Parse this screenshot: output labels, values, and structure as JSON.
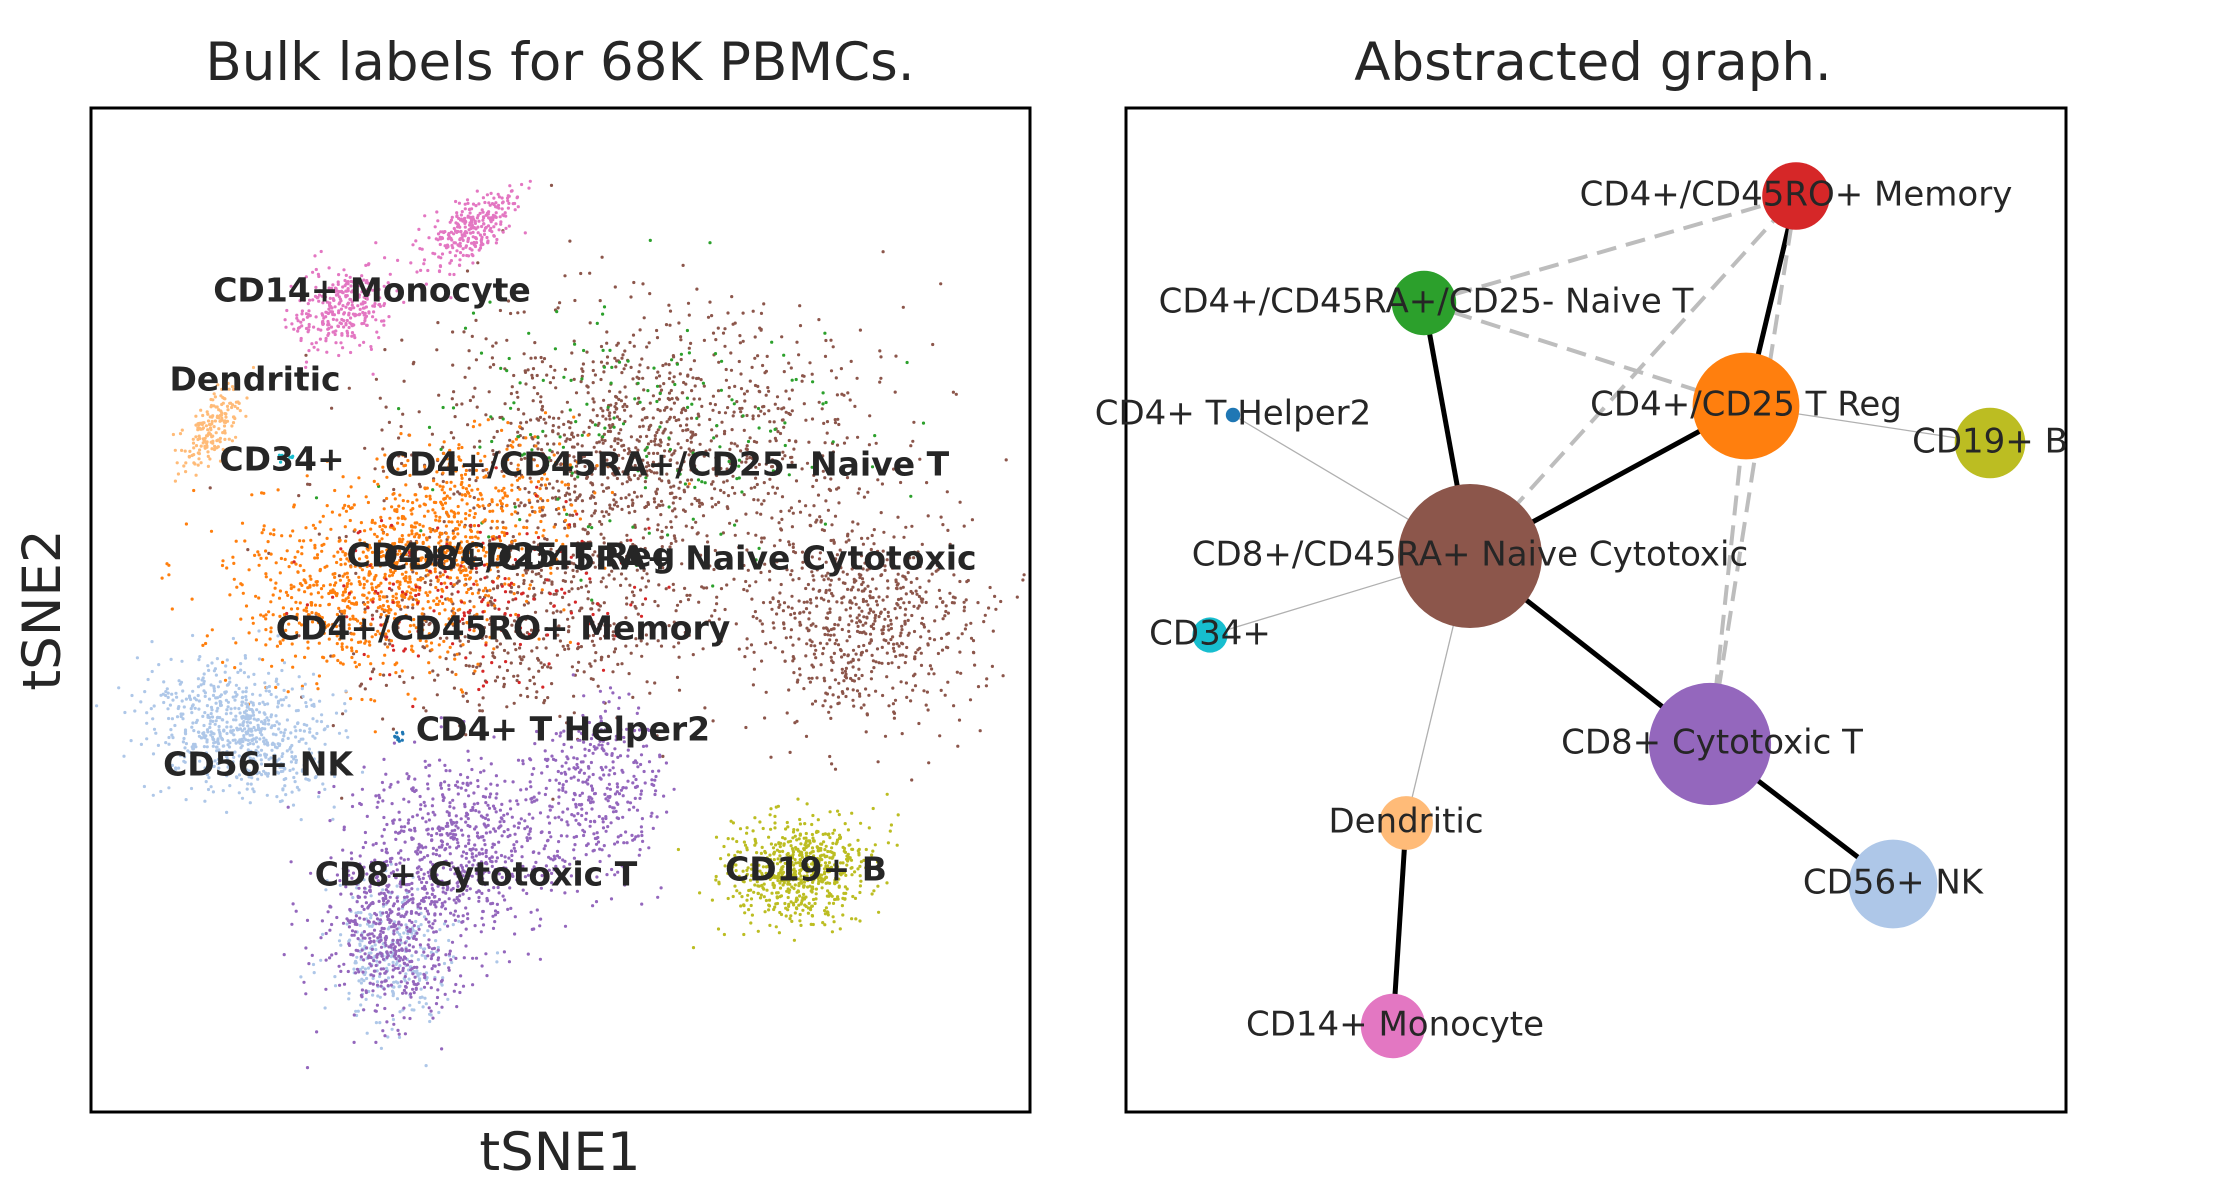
{
  "chart_data": [
    {
      "type": "scatter",
      "title": "Bulk labels for 68K PBMCs.",
      "xlabel": "tSNE1",
      "ylabel": "tSNE2",
      "xticks": [],
      "yticks": [],
      "grid": false,
      "legend": "on data",
      "clusters": [
        {
          "name": "CD14+ Monocyte",
          "color": "#e377c2"
        },
        {
          "name": "Dendritic",
          "color": "#ffbb78"
        },
        {
          "name": "CD34+",
          "color": "#17becf"
        },
        {
          "name": "CD4+/CD45RA+/CD25- Naive T",
          "color": "#2ca02c"
        },
        {
          "name": "CD4+/CD25 T Reg",
          "color": "#ff7f0e"
        },
        {
          "name": "CD8+/CD45RA+ Naive Cytotoxic",
          "color": "#8c564b"
        },
        {
          "name": "CD4+/CD45RO+ Memory",
          "color": "#d62728"
        },
        {
          "name": "CD4+ T Helper2",
          "color": "#1f77b4"
        },
        {
          "name": "CD56+ NK",
          "color": "#aec7e8"
        },
        {
          "name": "CD8+ Cytotoxic T",
          "color": "#9467bd"
        },
        {
          "name": "CD19+ B",
          "color": "#bcbd22"
        }
      ]
    },
    {
      "type": "network",
      "title": "Abstracted graph.",
      "nodes": [
        {
          "name": "CD4+/CD45RO+ Memory",
          "color": "#d62728",
          "relative_size": 0.22
        },
        {
          "name": "CD4+/CD45RA+/CD25- Naive T",
          "color": "#2ca02c",
          "relative_size": 0.2
        },
        {
          "name": "CD4+/CD25 T Reg",
          "color": "#ff7f0e",
          "relative_size": 0.55
        },
        {
          "name": "CD4+ T Helper2",
          "color": "#1f77b4",
          "relative_size": 0.01
        },
        {
          "name": "CD19+ B",
          "color": "#bcbd22",
          "relative_size": 0.24
        },
        {
          "name": "CD8+/CD45RA+ Naive Cytotoxic",
          "color": "#8c564b",
          "relative_size": 1.0
        },
        {
          "name": "CD34+",
          "color": "#17becf",
          "relative_size": 0.06
        },
        {
          "name": "CD8+ Cytotoxic T",
          "color": "#9467bd",
          "relative_size": 0.72
        },
        {
          "name": "Dendritic",
          "color": "#ffbb78",
          "relative_size": 0.14
        },
        {
          "name": "CD56+ NK",
          "color": "#aec7e8",
          "relative_size": 0.38
        },
        {
          "name": "CD14+ Monocyte",
          "color": "#e377c2",
          "relative_size": 0.2
        }
      ],
      "edges": [
        {
          "source": "CD4+/CD45RO+ Memory",
          "target": "CD4+/CD25 T Reg",
          "style": "solid-strong"
        },
        {
          "source": "CD4+/CD45RA+/CD25- Naive T",
          "target": "CD8+/CD45RA+ Naive Cytotoxic",
          "style": "solid-strong"
        },
        {
          "source": "CD4+/CD25 T Reg",
          "target": "CD8+/CD45RA+ Naive Cytotoxic",
          "style": "solid-strong"
        },
        {
          "source": "CD8+/CD45RA+ Naive Cytotoxic",
          "target": "CD8+ Cytotoxic T",
          "style": "solid-strong"
        },
        {
          "source": "CD8+ Cytotoxic T",
          "target": "CD56+ NK",
          "style": "solid-strong"
        },
        {
          "source": "Dendritic",
          "target": "CD14+ Monocyte",
          "style": "solid-strong"
        },
        {
          "source": "CD4+/CD45RA+/CD25- Naive T",
          "target": "CD4+/CD25 T Reg",
          "style": "dashed"
        },
        {
          "source": "CD4+/CD45RA+/CD25- Naive T",
          "target": "CD4+/CD45RO+ Memory",
          "style": "dashed"
        },
        {
          "source": "CD8+/CD45RA+ Naive Cytotoxic",
          "target": "CD4+/CD45RO+ Memory",
          "style": "dashed"
        },
        {
          "source": "CD4+/CD45RO+ Memory",
          "target": "CD8+ Cytotoxic T",
          "style": "dashed"
        },
        {
          "source": "CD4+/CD25 T Reg",
          "target": "CD8+ Cytotoxic T",
          "style": "dashed"
        },
        {
          "source": "CD4+ T Helper2",
          "target": "CD8+/CD45RA+ Naive Cytotoxic",
          "style": "solid-weak"
        },
        {
          "source": "CD34+",
          "target": "CD8+/CD45RA+ Naive Cytotoxic",
          "style": "solid-weak"
        },
        {
          "source": "Dendritic",
          "target": "CD8+/CD45RA+ Naive Cytotoxic",
          "style": "solid-weak"
        },
        {
          "source": "CD4+/CD25 T Reg",
          "target": "CD19+ B",
          "style": "solid-weak"
        }
      ]
    }
  ]
}
